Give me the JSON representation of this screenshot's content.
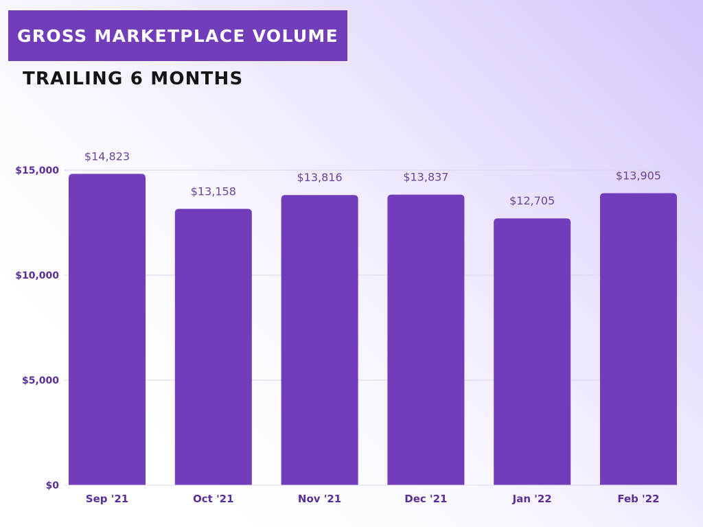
{
  "header": {
    "title": "GROSS MARKETPLACE VOLUME",
    "subtitle": "TRAILING 6 MONTHS"
  },
  "colors": {
    "bar": "#723dbb",
    "axis_label": "#5a2e9a",
    "data_label": "#6a4596",
    "grid": "#dcd4ea",
    "title_bg": "#723dbb"
  },
  "chart_data": {
    "type": "bar",
    "categories": [
      "Sep '21",
      "Oct '21",
      "Nov '21",
      "Dec '21",
      "Jan '22",
      "Feb '22"
    ],
    "values": [
      14823,
      13158,
      13816,
      13837,
      12705,
      13905
    ],
    "data_labels": [
      "$14,823",
      "$13,158",
      "$13,816",
      "$13,837",
      "$12,705",
      "$13,905"
    ],
    "ylim": [
      0,
      15000
    ],
    "yticks": [
      0,
      5000,
      10000,
      15000
    ],
    "ytick_labels": [
      "$0",
      "$5,000",
      "$10,000",
      "$15,000"
    ],
    "grid": true,
    "legend": "none"
  }
}
